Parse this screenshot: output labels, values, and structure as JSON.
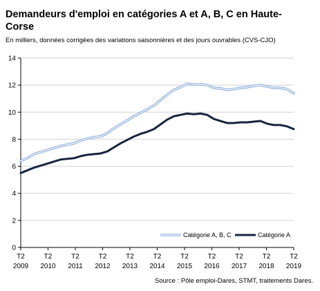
{
  "chart_data": {
    "type": "line",
    "title": "Demandeurs d'emploi en catégories A et A, B, C en Haute-Corse",
    "subtitle": "En milliers, données corrigées des variations saisonnières et des jours ouvrables (CVS-CJO)",
    "source": "Source : Pôle emploi-Dares, STMT, traitements Dares.",
    "ylim": [
      0,
      14
    ],
    "yticks": [
      "0",
      "2",
      "4",
      "6",
      "8",
      "10",
      "12",
      "14"
    ],
    "xticks": [
      {
        "quarter": "T2",
        "year": "2009"
      },
      {
        "quarter": "T2",
        "year": "2010"
      },
      {
        "quarter": "T2",
        "year": "2011"
      },
      {
        "quarter": "T2",
        "year": "2012"
      },
      {
        "quarter": "T2",
        "year": "2013"
      },
      {
        "quarter": "T2",
        "year": "2014"
      },
      {
        "quarter": "T2",
        "year": "2015"
      },
      {
        "quarter": "T2",
        "year": "2016"
      },
      {
        "quarter": "T2",
        "year": "2017"
      },
      {
        "quarter": "T2",
        "year": "2018"
      },
      {
        "quarter": "T2",
        "year": "2019"
      }
    ],
    "x_range": [
      "T2 2009",
      "T2 2019"
    ],
    "grid": "horizontal",
    "legend_position": "bottom-right",
    "series": [
      {
        "name": "Catégorie A, B, C",
        "color": "#8fb0dd",
        "style": "double-line",
        "values": [
          6.4,
          6.6,
          6.9,
          7.05,
          7.2,
          7.35,
          7.5,
          7.6,
          7.7,
          7.9,
          8.05,
          8.15,
          8.2,
          8.45,
          8.8,
          9.1,
          9.4,
          9.7,
          9.95,
          10.2,
          10.5,
          10.9,
          11.3,
          11.65,
          11.85,
          12.1,
          12.05,
          12.05,
          12.0,
          11.8,
          11.75,
          11.65,
          11.7,
          11.8,
          11.85,
          11.95,
          12.0,
          11.9,
          11.8,
          11.8,
          11.7,
          11.4
        ]
      },
      {
        "name": "Catégorie A",
        "color": "#15243f",
        "style": "solid",
        "values": [
          5.5,
          5.7,
          5.9,
          6.05,
          6.2,
          6.35,
          6.5,
          6.55,
          6.6,
          6.75,
          6.85,
          6.9,
          6.95,
          7.1,
          7.4,
          7.7,
          7.95,
          8.2,
          8.4,
          8.55,
          8.75,
          9.1,
          9.45,
          9.7,
          9.8,
          9.9,
          9.85,
          9.9,
          9.8,
          9.5,
          9.35,
          9.2,
          9.2,
          9.25,
          9.25,
          9.3,
          9.35,
          9.15,
          9.05,
          9.05,
          8.95,
          8.75
        ]
      }
    ]
  }
}
